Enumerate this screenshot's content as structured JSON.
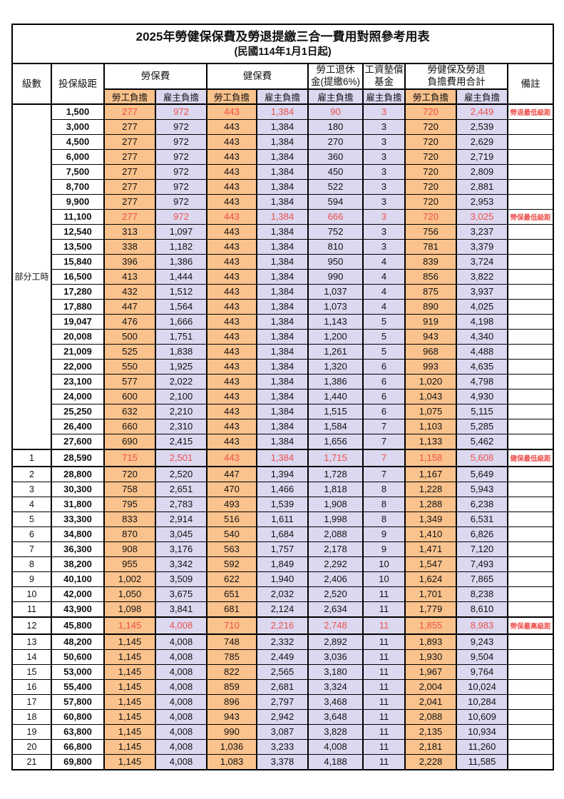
{
  "title": "2025年勞健保保費及勞退提繳三合一費用對照參考用表",
  "subtitle": "(民國114年1月1日起)",
  "columns": {
    "level": "級數",
    "bracket": "投保級距",
    "labor_insurance": "勞保費",
    "health_insurance": "健保費",
    "pension_line1": "勞工退休",
    "pension_line2": "金(提繳6%)",
    "wage_fund_line1": "工資墊償",
    "wage_fund_line2": "基金",
    "total_line1": "勞健保及勞退",
    "total_line2": "負擔費用合計",
    "remark": "備註",
    "employee_share": "勞工負擔",
    "employer_share": "雇主負擔"
  },
  "part_time_label": "部分工時",
  "colors": {
    "employee_share_bg": "#FAC28C",
    "employer_share_bg": "#DBD8F0",
    "highlight_red": "#EE4F4B"
  },
  "rows": [
    [
      "",
      "1,500",
      "277",
      "972",
      "443",
      "1,384",
      "90",
      "3",
      "720",
      "2,449",
      "勞退最低級距",
      "red"
    ],
    [
      "",
      "3,000",
      "277",
      "972",
      "443",
      "1,384",
      "180",
      "3",
      "720",
      "2,539",
      "",
      ""
    ],
    [
      "",
      "4,500",
      "277",
      "972",
      "443",
      "1,384",
      "270",
      "3",
      "720",
      "2,629",
      "",
      ""
    ],
    [
      "",
      "6,000",
      "277",
      "972",
      "443",
      "1,384",
      "360",
      "3",
      "720",
      "2,719",
      "",
      ""
    ],
    [
      "",
      "7,500",
      "277",
      "972",
      "443",
      "1,384",
      "450",
      "3",
      "720",
      "2,809",
      "",
      ""
    ],
    [
      "",
      "8,700",
      "277",
      "972",
      "443",
      "1,384",
      "522",
      "3",
      "720",
      "2,881",
      "",
      ""
    ],
    [
      "",
      "9,900",
      "277",
      "972",
      "443",
      "1,384",
      "594",
      "3",
      "720",
      "2,953",
      "",
      ""
    ],
    [
      "",
      "11,100",
      "277",
      "972",
      "443",
      "1,384",
      "666",
      "3",
      "720",
      "3,025",
      "勞保最低級距",
      "red"
    ],
    [
      "",
      "12,540",
      "313",
      "1,097",
      "443",
      "1,384",
      "752",
      "3",
      "756",
      "3,237",
      "",
      ""
    ],
    [
      "",
      "13,500",
      "338",
      "1,182",
      "443",
      "1,384",
      "810",
      "3",
      "781",
      "3,379",
      "",
      ""
    ],
    [
      "",
      "15,840",
      "396",
      "1,386",
      "443",
      "1,384",
      "950",
      "4",
      "839",
      "3,724",
      "",
      ""
    ],
    [
      "",
      "16,500",
      "413",
      "1,444",
      "443",
      "1,384",
      "990",
      "4",
      "856",
      "3,822",
      "",
      ""
    ],
    [
      "",
      "17,280",
      "432",
      "1,512",
      "443",
      "1,384",
      "1,037",
      "4",
      "875",
      "3,937",
      "",
      ""
    ],
    [
      "",
      "17,880",
      "447",
      "1,564",
      "443",
      "1,384",
      "1,073",
      "4",
      "890",
      "4,025",
      "",
      ""
    ],
    [
      "",
      "19,047",
      "476",
      "1,666",
      "443",
      "1,384",
      "1,143",
      "5",
      "919",
      "4,198",
      "",
      ""
    ],
    [
      "",
      "20,008",
      "500",
      "1,751",
      "443",
      "1,384",
      "1,200",
      "5",
      "943",
      "4,340",
      "",
      ""
    ],
    [
      "",
      "21,009",
      "525",
      "1,838",
      "443",
      "1,384",
      "1,261",
      "5",
      "968",
      "4,488",
      "",
      ""
    ],
    [
      "",
      "22,000",
      "550",
      "1,925",
      "443",
      "1,384",
      "1,320",
      "6",
      "993",
      "4,635",
      "",
      ""
    ],
    [
      "",
      "23,100",
      "577",
      "2,022",
      "443",
      "1,384",
      "1,386",
      "6",
      "1,020",
      "4,798",
      "",
      ""
    ],
    [
      "",
      "24,000",
      "600",
      "2,100",
      "443",
      "1,384",
      "1,440",
      "6",
      "1,043",
      "4,930",
      "",
      ""
    ],
    [
      "",
      "25,250",
      "632",
      "2,210",
      "443",
      "1,384",
      "1,515",
      "6",
      "1,075",
      "5,115",
      "",
      ""
    ],
    [
      "",
      "26,400",
      "660",
      "2,310",
      "443",
      "1,384",
      "1,584",
      "7",
      "1,103",
      "5,285",
      "",
      ""
    ],
    [
      "",
      "27,600",
      "690",
      "2,415",
      "443",
      "1,384",
      "1,656",
      "7",
      "1,133",
      "5,462",
      "",
      ""
    ],
    [
      "1",
      "28,590",
      "715",
      "2,501",
      "443",
      "1,384",
      "1,715",
      "7",
      "1,158",
      "5,608",
      "健保最低級距",
      "red key"
    ],
    [
      "2",
      "28,800",
      "720",
      "2,520",
      "447",
      "1,394",
      "1,728",
      "7",
      "1,167",
      "5,649",
      "",
      ""
    ],
    [
      "3",
      "30,300",
      "758",
      "2,651",
      "470",
      "1,466",
      "1,818",
      "8",
      "1,228",
      "5,943",
      "",
      ""
    ],
    [
      "4",
      "31,800",
      "795",
      "2,783",
      "493",
      "1,539",
      "1,908",
      "8",
      "1,288",
      "6,238",
      "",
      ""
    ],
    [
      "5",
      "33,300",
      "833",
      "2,914",
      "516",
      "1,611",
      "1,998",
      "8",
      "1,349",
      "6,531",
      "",
      ""
    ],
    [
      "6",
      "34,800",
      "870",
      "3,045",
      "540",
      "1,684",
      "2,088",
      "9",
      "1,410",
      "6,826",
      "",
      ""
    ],
    [
      "7",
      "36,300",
      "908",
      "3,176",
      "563",
      "1,757",
      "2,178",
      "9",
      "1,471",
      "7,120",
      "",
      ""
    ],
    [
      "8",
      "38,200",
      "955",
      "3,342",
      "592",
      "1,849",
      "2,292",
      "10",
      "1,547",
      "7,493",
      "",
      ""
    ],
    [
      "9",
      "40,100",
      "1,002",
      "3,509",
      "622",
      "1,940",
      "2,406",
      "10",
      "1,624",
      "7,865",
      "",
      ""
    ],
    [
      "10",
      "42,000",
      "1,050",
      "3,675",
      "651",
      "2,032",
      "2,520",
      "11",
      "1,701",
      "8,238",
      "",
      ""
    ],
    [
      "11",
      "43,900",
      "1,098",
      "3,841",
      "681",
      "2,124",
      "2,634",
      "11",
      "1,779",
      "8,610",
      "",
      ""
    ],
    [
      "12",
      "45,800",
      "1,145",
      "4,008",
      "710",
      "2,216",
      "2,748",
      "11",
      "1,855",
      "8,983",
      "勞保最高級距",
      "red key"
    ],
    [
      "13",
      "48,200",
      "1,145",
      "4,008",
      "748",
      "2,332",
      "2,892",
      "11",
      "1,893",
      "9,243",
      "",
      ""
    ],
    [
      "14",
      "50,600",
      "1,145",
      "4,008",
      "785",
      "2,449",
      "3,036",
      "11",
      "1,930",
      "9,504",
      "",
      ""
    ],
    [
      "15",
      "53,000",
      "1,145",
      "4,008",
      "822",
      "2,565",
      "3,180",
      "11",
      "1,967",
      "9,764",
      "",
      ""
    ],
    [
      "16",
      "55,400",
      "1,145",
      "4,008",
      "859",
      "2,681",
      "3,324",
      "11",
      "2,004",
      "10,024",
      "",
      ""
    ],
    [
      "17",
      "57,800",
      "1,145",
      "4,008",
      "896",
      "2,797",
      "3,468",
      "11",
      "2,041",
      "10,284",
      "",
      ""
    ],
    [
      "18",
      "60,800",
      "1,145",
      "4,008",
      "943",
      "2,942",
      "3,648",
      "11",
      "2,088",
      "10,609",
      "",
      ""
    ],
    [
      "19",
      "63,800",
      "1,145",
      "4,008",
      "990",
      "3,087",
      "3,828",
      "11",
      "2,135",
      "10,934",
      "",
      ""
    ],
    [
      "20",
      "66,800",
      "1,145",
      "4,008",
      "1,036",
      "3,233",
      "4,008",
      "11",
      "2,181",
      "11,260",
      "",
      ""
    ],
    [
      "21",
      "69,800",
      "1,145",
      "4,008",
      "1,083",
      "3,378",
      "4,188",
      "11",
      "2,228",
      "11,585",
      "",
      ""
    ]
  ]
}
